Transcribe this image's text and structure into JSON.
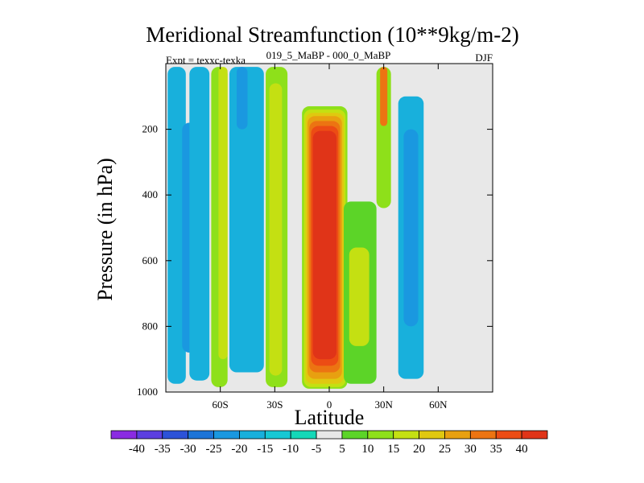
{
  "chart_data": {
    "type": "contour",
    "title": "Meridional Streamfunction (10**9kg/m-2)",
    "left_label": "Expt = texxc-texka",
    "center_label": "019_5_MaBP - 000_0_MaBP",
    "right_label": "DJF",
    "xlabel": "Latitude",
    "ylabel": "Pressure (in hPa)",
    "xlim": [
      -90,
      90
    ],
    "ylim": [
      1000,
      0
    ],
    "xticks": [
      {
        "value": -60,
        "label": "60S"
      },
      {
        "value": -30,
        "label": "30S"
      },
      {
        "value": 0,
        "label": "0"
      },
      {
        "value": 30,
        "label": "30N"
      },
      {
        "value": 60,
        "label": "60N"
      }
    ],
    "yticks": [
      {
        "value": 200,
        "label": "200"
      },
      {
        "value": 400,
        "label": "400"
      },
      {
        "value": 600,
        "label": "600"
      },
      {
        "value": 800,
        "label": "800"
      },
      {
        "value": 1000,
        "label": "1000"
      }
    ],
    "colorbar": {
      "labels": [
        "-40",
        "-35",
        "-30",
        "-25",
        "-20",
        "-15",
        "-10",
        "-5",
        "5",
        "10",
        "15",
        "20",
        "25",
        "30",
        "35",
        "40"
      ],
      "colors": [
        "#8a2be2",
        "#5c3fe0",
        "#2c52d8",
        "#1c74d8",
        "#1a98e0",
        "#18b0dc",
        "#16c8d4",
        "#14d8b8",
        "#e8e8e8",
        "#5cd428",
        "#8ee01a",
        "#c4e012",
        "#e0c810",
        "#e8a010",
        "#ec7412",
        "#ec4c14",
        "#e03418"
      ]
    },
    "regions": [
      {
        "name": "sh-outer-cell-col1",
        "lat": [
          -89,
          -79
        ],
        "p": [
          10,
          975
        ],
        "color": "#18b0dc"
      },
      {
        "name": "sh-outer-cell-core",
        "lat": [
          -81,
          -72
        ],
        "p": [
          180,
          880
        ],
        "color": "#1a98e0"
      },
      {
        "name": "sh-outer-cell-col2",
        "lat": [
          -77,
          -66
        ],
        "p": [
          10,
          965
        ],
        "color": "#18b0dc"
      },
      {
        "name": "sh-pos-band1",
        "lat": [
          -65,
          -56
        ],
        "p": [
          10,
          985
        ],
        "color": "#8ee01a"
      },
      {
        "name": "sh-pos-band1-core",
        "lat": [
          -61,
          -56
        ],
        "p": [
          10,
          900
        ],
        "color": "#c4e012"
      },
      {
        "name": "sh-neg-band",
        "lat": [
          -55,
          -36
        ],
        "p": [
          10,
          940
        ],
        "color": "#18b0dc"
      },
      {
        "name": "sh-neg-band-core",
        "lat": [
          -51,
          -45
        ],
        "p": [
          10,
          200
        ],
        "color": "#1a98e0"
      },
      {
        "name": "sh-pos-band2",
        "lat": [
          -35,
          -23
        ],
        "p": [
          10,
          985
        ],
        "color": "#8ee01a"
      },
      {
        "name": "sh-pos-band2-core",
        "lat": [
          -33,
          -26
        ],
        "p": [
          60,
          950
        ],
        "color": "#c4e012"
      },
      {
        "name": "eq-cell-1",
        "lat": [
          -15,
          10
        ],
        "p": [
          130,
          990
        ],
        "color": "#8ee01a"
      },
      {
        "name": "eq-cell-2",
        "lat": [
          -14,
          9
        ],
        "p": [
          140,
          985
        ],
        "color": "#c4e012"
      },
      {
        "name": "eq-cell-3",
        "lat": [
          -13,
          8
        ],
        "p": [
          150,
          975
        ],
        "color": "#e0c810"
      },
      {
        "name": "eq-cell-4",
        "lat": [
          -12,
          7
        ],
        "p": [
          160,
          960
        ],
        "color": "#e8a010"
      },
      {
        "name": "eq-cell-5",
        "lat": [
          -11,
          6
        ],
        "p": [
          175,
          940
        ],
        "color": "#ec7412"
      },
      {
        "name": "eq-cell-6",
        "lat": [
          -10,
          5
        ],
        "p": [
          190,
          920
        ],
        "color": "#ec4c14"
      },
      {
        "name": "eq-cell-7",
        "lat": [
          -9,
          4
        ],
        "p": [
          205,
          900
        ],
        "color": "#e03418"
      },
      {
        "name": "nh-pos-1",
        "lat": [
          8,
          26
        ],
        "p": [
          420,
          975
        ],
        "color": "#5cd428"
      },
      {
        "name": "nh-pos-1-core",
        "lat": [
          11,
          22
        ],
        "p": [
          560,
          860
        ],
        "color": "#c4e012"
      },
      {
        "name": "nh-neg",
        "lat": [
          38,
          52
        ],
        "p": [
          100,
          960
        ],
        "color": "#18b0dc"
      },
      {
        "name": "nh-neg-core",
        "lat": [
          41,
          49
        ],
        "p": [
          200,
          800
        ],
        "color": "#1a98e0"
      },
      {
        "name": "nh-upper-pos",
        "lat": [
          26,
          34
        ],
        "p": [
          10,
          440
        ],
        "color": "#8ee01a"
      },
      {
        "name": "nh-upper-pos-core",
        "lat": [
          28,
          32
        ],
        "p": [
          10,
          190
        ],
        "color": "#ec7412"
      }
    ]
  }
}
